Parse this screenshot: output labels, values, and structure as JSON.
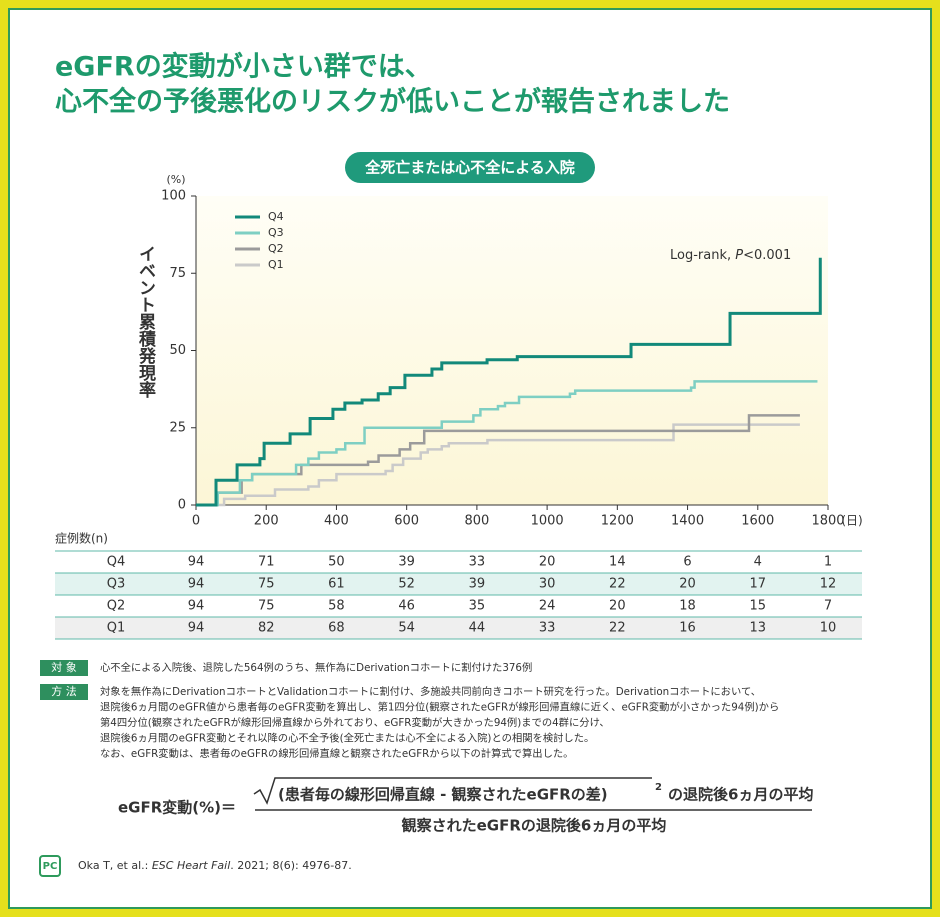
{
  "title_lines": [
    "eGFRの変動が小さい群では、",
    "心不全の予後悪化のリスクが低いことが報告されました"
  ],
  "chart_data": {
    "type": "step",
    "title": "全死亡または心不全による入院",
    "y_label": "イベント累積発現率",
    "y_unit": "(%)",
    "x_unit": "(日)",
    "annotation": {
      "prefix": "Log-rank, ",
      "italic": "P",
      "suffix": "<0.001"
    },
    "xlim": [
      0,
      1800
    ],
    "ylim": [
      0,
      100
    ],
    "xticks": [
      0,
      200,
      400,
      600,
      800,
      1000,
      1200,
      1400,
      1600,
      1800
    ],
    "yticks": [
      0,
      25,
      50,
      75,
      100
    ],
    "legend_position": "upper left",
    "series": [
      {
        "name": "Q4",
        "color": "#12897a",
        "x": [
          0,
          57,
          117,
          182,
          194,
          268,
          325,
          390,
          424,
          473,
          519,
          553,
          595,
          672,
          700,
          829,
          915,
          1239,
          1521,
          1778
        ],
        "values": [
          0,
          8,
          13,
          15,
          20,
          23,
          28,
          31,
          33,
          34,
          36,
          38,
          42,
          44,
          46,
          47,
          48,
          52,
          62,
          80
        ]
      },
      {
        "name": "Q3",
        "color": "#7ecfc3",
        "x": [
          0,
          62,
          125,
          160,
          285,
          320,
          350,
          400,
          425,
          480,
          700,
          790,
          810,
          860,
          880,
          920,
          1065,
          1080,
          1410,
          1420,
          1770
        ],
        "values": [
          0,
          4,
          8,
          10,
          13,
          15,
          17,
          18,
          20,
          25,
          27,
          29,
          31,
          32,
          33,
          35,
          36,
          37,
          38,
          40,
          40
        ]
      },
      {
        "name": "Q2",
        "color": "#9b9b9b",
        "x": [
          0,
          60,
          130,
          160,
          300,
          490,
          520,
          580,
          610,
          650,
          1575,
          1720
        ],
        "values": [
          0,
          4,
          8,
          10,
          13,
          14,
          16,
          18,
          20,
          24,
          29,
          29
        ]
      },
      {
        "name": "Q1",
        "color": "#cacaca",
        "x": [
          0,
          80,
          140,
          225,
          320,
          350,
          400,
          540,
          560,
          590,
          640,
          660,
          700,
          720,
          830,
          1360,
          1720
        ],
        "values": [
          0,
          2,
          3,
          5,
          6,
          8,
          10,
          11,
          13,
          15,
          17,
          18,
          19,
          20,
          21,
          26,
          26
        ]
      }
    ]
  },
  "risk_table": {
    "title": "症例数(n)",
    "rows": [
      {
        "label": "Q4",
        "counts": [
          94,
          71,
          50,
          39,
          33,
          20,
          14,
          6,
          4,
          1
        ]
      },
      {
        "label": "Q3",
        "counts": [
          94,
          75,
          61,
          52,
          39,
          30,
          22,
          20,
          17,
          12
        ]
      },
      {
        "label": "Q2",
        "counts": [
          94,
          75,
          58,
          46,
          35,
          24,
          20,
          18,
          15,
          7
        ]
      },
      {
        "label": "Q1",
        "counts": [
          94,
          82,
          68,
          54,
          44,
          33,
          22,
          16,
          13,
          10
        ]
      }
    ]
  },
  "notes": [
    {
      "label": "対 象",
      "lines": [
        "心不全による入院後、退院した564例のうち、無作為にDerivationコホートに割付けた376例"
      ]
    },
    {
      "label": "方 法",
      "lines": [
        "対象を無作為にDerivationコホートとValidationコホートに割付け、多施設共同前向きコホート研究を行った。Derivationコホートにおいて、",
        "退院後6ヵ月間のeGFR値から患者毎のeGFR変動を算出し、第1四分位(観察されたeGFRが線形回帰直線に近く、eGFR変動が小さかった94例)から",
        "第4四分位(観察されたeGFRが線形回帰直線から外れており、eGFR変動が大きかった94例)までの4群に分け、",
        "退院後6ヵ月間のeGFR変動とそれ以降の心不全予後(全死亡または心不全による入院)との相関を検討した。",
        "なお、eGFR変動は、患者毎のeGFRの線形回帰直線と観察されたeGFRから以下の計算式で算出した。"
      ]
    }
  ],
  "formula": {
    "lhs": "eGFR変動(%)＝",
    "radicand": "(患者毎の線形回帰直線 - 観察されたeGFRの差)",
    "exponent": "2",
    "numerator_suffix": "の退院後6ヵ月の平均",
    "denominator": "観察されたeGFRの退院後6ヵ月の平均"
  },
  "citation": {
    "logo": "PC",
    "authors": "Oka T, et al.: ",
    "journal": "ESC Heart Fail",
    "details": ". 2021; 8(6): 4976-87."
  }
}
